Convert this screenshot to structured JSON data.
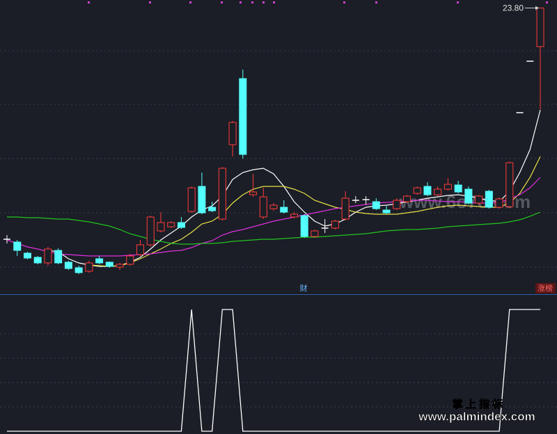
{
  "chart_data": [
    {
      "type": "candlestick",
      "ylim": [
        16.03,
        24.03
      ],
      "up_color": "#ff3b3b",
      "down_color": "#54ffff",
      "flat_color": "#ffffff",
      "open": [
        17.15,
        17.07,
        16.75,
        16.63,
        16.47,
        16.83,
        16.49,
        16.33,
        16.23,
        16.59,
        16.49,
        16.35,
        16.43,
        16.71,
        16.99,
        17.39,
        17.51,
        17.63,
        17.95,
        18.67,
        18.07,
        17.73,
        19.87,
        21.77,
        18.43,
        17.79,
        18.03,
        18.07,
        17.79,
        17.83,
        17.23,
        17.47,
        17.47,
        17.73,
        18.27,
        18.29,
        18.23,
        17.99,
        18.03,
        18.23,
        18.47,
        18.67,
        18.43,
        18.59,
        18.71,
        18.59,
        18.19,
        18.53,
        18.07,
        18.09,
        20.79,
        22.27,
        22.69
      ],
      "high": [
        17.27,
        17.13,
        16.79,
        16.67,
        16.93,
        16.89,
        16.53,
        16.39,
        16.53,
        16.67,
        16.51,
        16.47,
        16.73,
        17.13,
        17.83,
        17.93,
        17.67,
        17.79,
        18.67,
        19.07,
        18.23,
        19.23,
        20.55,
        22.03,
        19.03,
        18.63,
        18.19,
        18.27,
        17.93,
        17.87,
        17.43,
        17.73,
        17.71,
        18.53,
        18.39,
        18.39,
        18.33,
        18.11,
        18.33,
        18.43,
        18.67,
        18.79,
        18.67,
        18.91,
        18.83,
        18.67,
        18.43,
        18.57,
        18.35,
        19.39,
        20.79,
        22.27,
        23.8
      ],
      "low": [
        17.03,
        16.67,
        16.57,
        16.43,
        16.39,
        16.43,
        16.27,
        16.15,
        16.19,
        16.43,
        16.33,
        16.27,
        16.39,
        16.67,
        16.93,
        17.35,
        17.47,
        17.45,
        17.91,
        17.87,
        17.93,
        17.69,
        19.53,
        19.47,
        18.37,
        17.73,
        17.97,
        17.89,
        17.75,
        17.19,
        17.19,
        17.33,
        17.43,
        17.69,
        18.19,
        18.15,
        17.99,
        17.87,
        17.99,
        18.19,
        18.43,
        18.39,
        18.39,
        18.55,
        18.47,
        18.15,
        18.15,
        18.03,
        18.03,
        18.05,
        20.79,
        22.27,
        20.89
      ],
      "close": [
        17.15,
        16.83,
        16.61,
        16.47,
        16.87,
        16.47,
        16.31,
        16.19,
        16.47,
        16.47,
        16.37,
        16.43,
        16.67,
        16.99,
        17.79,
        17.63,
        17.63,
        17.49,
        18.63,
        17.91,
        17.97,
        19.19,
        20.51,
        19.59,
        18.51,
        18.37,
        18.13,
        17.93,
        17.87,
        17.23,
        17.39,
        17.47,
        17.67,
        18.33,
        18.27,
        18.29,
        18.03,
        17.91,
        18.27,
        18.39,
        18.63,
        18.43,
        18.59,
        18.73,
        18.51,
        18.19,
        18.39,
        18.07,
        18.31,
        19.35,
        20.79,
        22.27,
        23.8
      ],
      "max_label": "23.80",
      "annotations": [
        "财",
        "涨榜"
      ],
      "series": [
        {
          "color": "#ffffff",
          "values": [
            null,
            null,
            null,
            null,
            16.83,
            16.79,
            16.59,
            16.47,
            16.41,
            16.37,
            16.37,
            16.39,
            16.49,
            16.63,
            16.87,
            17.13,
            17.33,
            17.53,
            17.79,
            17.99,
            18.11,
            18.39,
            18.87,
            19.07,
            19.15,
            19.19,
            19.03,
            18.67,
            18.23,
            17.93,
            17.67,
            17.53,
            17.59,
            17.73,
            17.93,
            18.07,
            18.11,
            18.13,
            18.17,
            18.23,
            18.27,
            18.33,
            18.37,
            18.41,
            18.43,
            18.39,
            18.33,
            18.27,
            18.23,
            18.53,
            19.07,
            19.73,
            20.87
          ]
        },
        {
          "color": "#e8e04a",
          "values": [
            null,
            null,
            null,
            null,
            null,
            null,
            null,
            null,
            16.41,
            16.39,
            16.37,
            16.39,
            16.47,
            16.59,
            16.73,
            16.87,
            17.03,
            17.15,
            17.35,
            17.59,
            17.67,
            17.87,
            18.19,
            18.43,
            18.59,
            18.67,
            18.67,
            18.67,
            18.59,
            18.47,
            18.27,
            18.17,
            18.07,
            18.01,
            17.93,
            17.89,
            17.87,
            17.87,
            17.87,
            17.91,
            17.95,
            18.01,
            18.07,
            18.11,
            18.13,
            18.11,
            18.09,
            18.07,
            18.07,
            18.19,
            18.47,
            18.93,
            19.53
          ]
        },
        {
          "color": "#e030e0",
          "values": [
            17.13,
            17.03,
            16.93,
            16.87,
            16.79,
            16.73,
            16.71,
            16.69,
            16.67,
            16.67,
            16.67,
            16.67,
            16.69,
            16.71,
            16.73,
            16.77,
            16.81,
            16.83,
            16.91,
            17.03,
            17.11,
            17.27,
            17.37,
            17.43,
            17.51,
            17.59,
            17.67,
            17.73,
            17.79,
            17.85,
            17.91,
            17.97,
            18.03,
            18.07,
            18.11,
            18.15,
            18.19,
            18.21,
            18.23,
            18.25,
            18.27,
            18.27,
            18.25,
            18.23,
            18.23,
            18.21,
            18.19,
            18.19,
            18.21,
            18.31,
            18.43,
            18.63,
            18.93
          ]
        },
        {
          "color": "#22c422",
          "values": [
            17.79,
            17.79,
            17.77,
            17.77,
            17.75,
            17.73,
            17.73,
            17.69,
            17.65,
            17.59,
            17.53,
            17.43,
            17.31,
            17.23,
            17.15,
            17.09,
            17.03,
            17.01,
            17.01,
            17.03,
            17.03,
            17.05,
            17.09,
            17.11,
            17.13,
            17.15,
            17.15,
            17.17,
            17.19,
            17.21,
            17.21,
            17.23,
            17.25,
            17.27,
            17.29,
            17.31,
            17.35,
            17.39,
            17.41,
            17.43,
            17.43,
            17.45,
            17.47,
            17.51,
            17.53,
            17.55,
            17.57,
            17.59,
            17.61,
            17.65,
            17.71,
            17.81,
            17.93
          ]
        }
      ]
    },
    {
      "type": "line",
      "ylim": [
        0,
        1
      ],
      "color": "#ffffff",
      "values": [
        0,
        0,
        0,
        0,
        0,
        0,
        0,
        0,
        0,
        0,
        0,
        0,
        0,
        0,
        0,
        0,
        0,
        0,
        1,
        0,
        0,
        1,
        1,
        0,
        0,
        0,
        0,
        0,
        0,
        0,
        0,
        0,
        0,
        0,
        0,
        0,
        0,
        0,
        0,
        0,
        0,
        0,
        0,
        0,
        0,
        0,
        0,
        0,
        0,
        1,
        1,
        1,
        1
      ]
    }
  ],
  "watermarks": {
    "site": "www.6o7o.com",
    "brand": "掌 上 指 标",
    "url": "www.palmindex.com"
  }
}
